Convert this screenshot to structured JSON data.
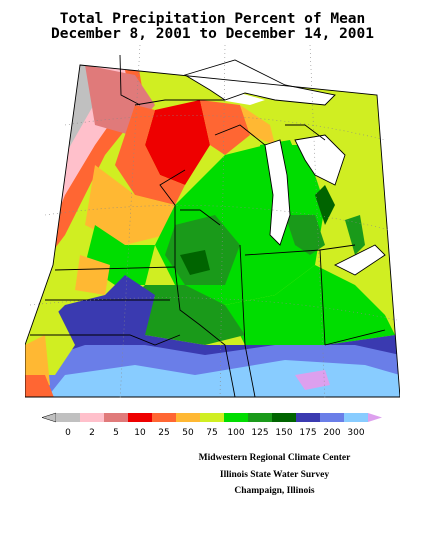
{
  "title": {
    "line1": "Total Precipitation Percent of Mean",
    "line2": "December 8, 2001 to December 14, 2001"
  },
  "legend": {
    "bins": [
      {
        "label": "0",
        "color": "#c0c0c0"
      },
      {
        "label": "2",
        "color": "#ffc0cb"
      },
      {
        "label": "5",
        "color": "#e07a7a"
      },
      {
        "label": "10",
        "color": "#ee0000"
      },
      {
        "label": "25",
        "color": "#ff6633"
      },
      {
        "label": "50",
        "color": "#ffb833"
      },
      {
        "label": "75",
        "color": "#d0ee22"
      },
      {
        "label": "100",
        "color": "#00dd00"
      },
      {
        "label": "125",
        "color": "#1a9a1a"
      },
      {
        "label": "150",
        "color": "#006400"
      },
      {
        "label": "175",
        "color": "#3a3ab0"
      },
      {
        "label": "200",
        "color": "#6a7ee8"
      },
      {
        "label": "300",
        "color": "#88ccff"
      }
    ],
    "over_color": "#dda0ee"
  },
  "credits": {
    "line1": "Midwestern Regional Climate Center",
    "line2": "Illinois State Water Survey",
    "line3": "Champaign, Illinois"
  }
}
